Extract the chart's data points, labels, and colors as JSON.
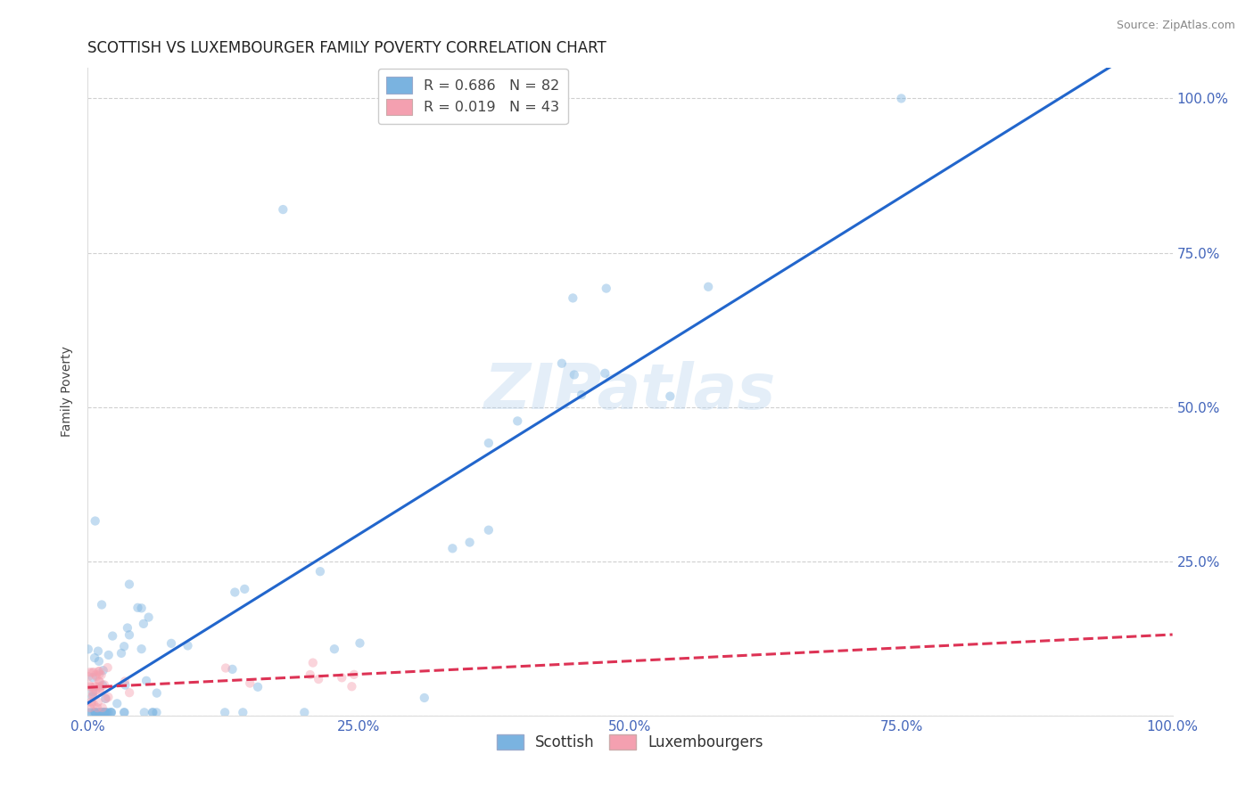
{
  "title": "SCOTTISH VS LUXEMBOURGER FAMILY POVERTY CORRELATION CHART",
  "source": "Source: ZipAtlas.com",
  "ylabel": "Family Poverty",
  "watermark": "ZIPatlas",
  "scottish_color": "#7ab3e0",
  "luxembourger_color": "#f4a0b0",
  "scottish_line_color": "#2266cc",
  "luxembourger_line_color": "#dd3355",
  "grid_color": "#c8c8c8",
  "background_color": "#ffffff",
  "tick_color": "#4466bb",
  "title_fontsize": 12,
  "axis_label_fontsize": 10,
  "tick_fontsize": 11,
  "marker_size": 55,
  "marker_alpha": 0.45,
  "line_width": 2.2
}
